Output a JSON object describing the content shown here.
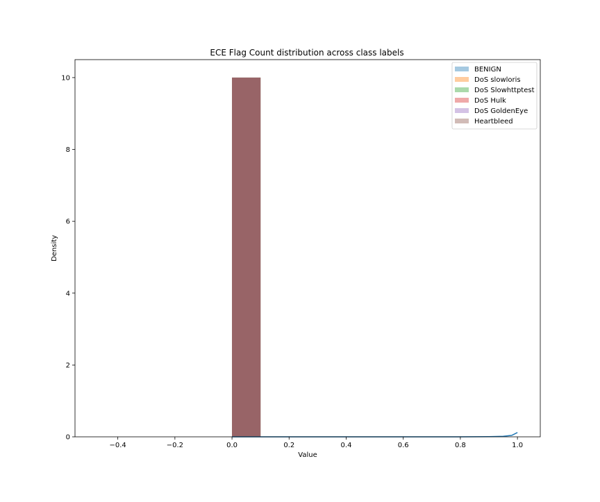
{
  "chart_data": {
    "type": "bar",
    "title": "ECE Flag Count distribution across class labels",
    "xlabel": "Value",
    "ylabel": "Density",
    "xlim": [
      -0.55,
      1.08
    ],
    "ylim": [
      0,
      10.5
    ],
    "x_ticks": [
      -0.4,
      -0.2,
      0.0,
      0.2,
      0.4,
      0.6,
      0.8,
      1.0
    ],
    "x_tick_labels": [
      "−0.4",
      "−0.2",
      "0.0",
      "0.2",
      "0.4",
      "0.6",
      "0.8",
      "1.0"
    ],
    "y_ticks": [
      0,
      2,
      4,
      6,
      8,
      10
    ],
    "y_tick_labels": [
      "0",
      "2",
      "4",
      "6",
      "8",
      "10"
    ],
    "grid": false,
    "legend_position": "top-right",
    "bins": [
      {
        "x0": 0.0,
        "x1": 0.1,
        "density": 10
      }
    ],
    "series": [
      {
        "name": "BENIGN",
        "color": "#1f77b4",
        "density": [
          10
        ]
      },
      {
        "name": "DoS slowloris",
        "color": "#ff7f0e",
        "density": [
          10
        ]
      },
      {
        "name": "DoS Slowhttptest",
        "color": "#2ca02c",
        "density": [
          10
        ]
      },
      {
        "name": "DoS Hulk",
        "color": "#d62728",
        "density": [
          10
        ]
      },
      {
        "name": "DoS GoldenEye",
        "color": "#9467bd",
        "density": [
          10
        ]
      },
      {
        "name": "Heartbleed",
        "color": "#8c564b",
        "density": [
          10
        ]
      }
    ],
    "bar_alpha": 0.4,
    "kde_line": {
      "color": "#1f77b4",
      "x": [
        0.0,
        0.2,
        0.4,
        0.6,
        0.8,
        0.9,
        0.95,
        0.98,
        1.0
      ],
      "y": [
        0.0,
        0.0,
        0.0,
        0.0,
        0.0,
        0.005,
        0.015,
        0.04,
        0.12
      ]
    }
  }
}
